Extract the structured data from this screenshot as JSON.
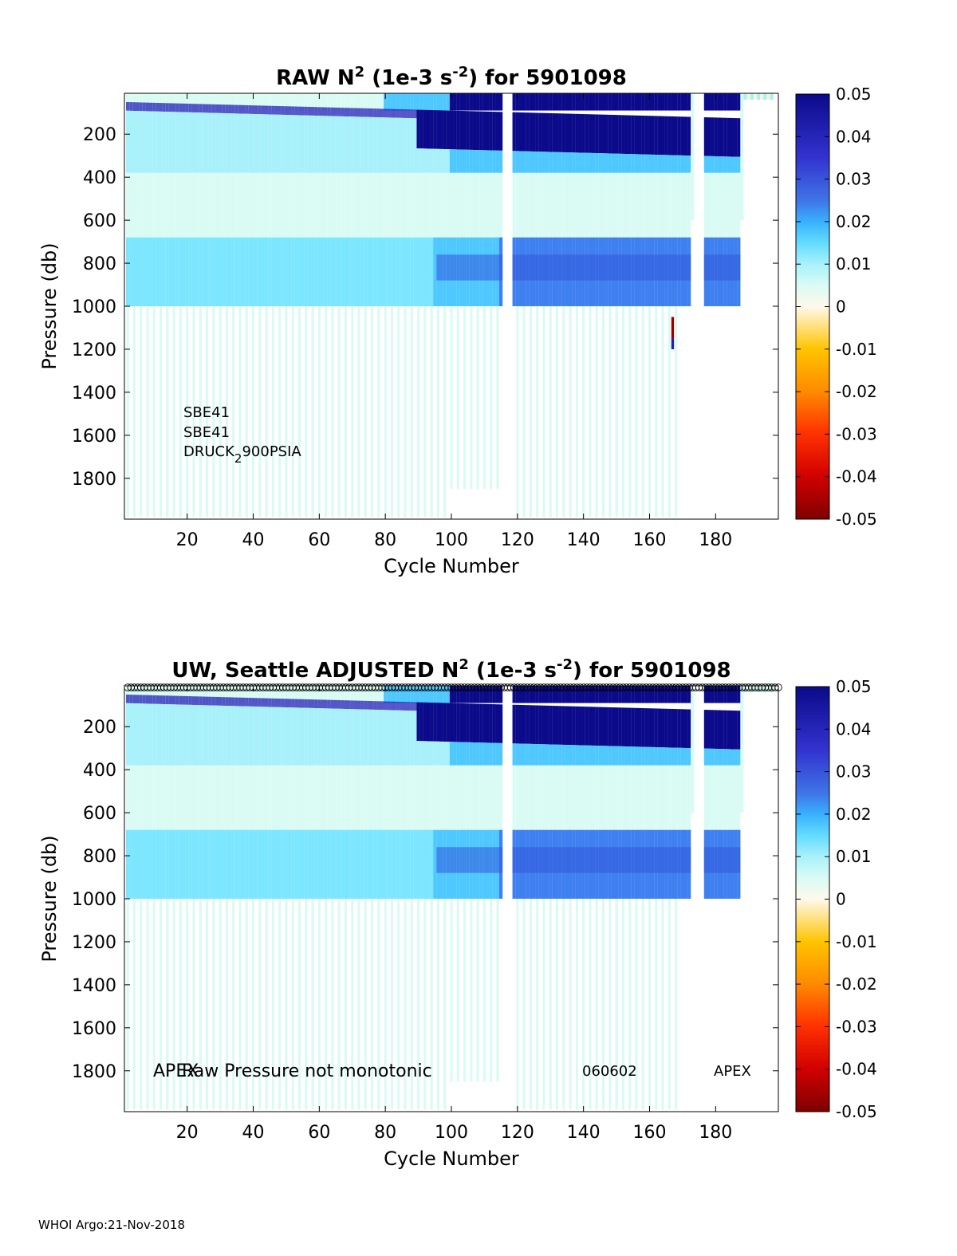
{
  "footer": "WHOI Argo:21-Nov-2018",
  "colors": {
    "cmap_neg": [
      "#7f0000",
      "#d00000",
      "#ff3000",
      "#ff8a00",
      "#ffc400",
      "#fff2d6"
    ],
    "cmap_pos": [
      "#fff9ec",
      "#d9fbf5",
      "#a9f1fa",
      "#63dcff",
      "#38b0ff",
      "#3f74e6",
      "#3333d0",
      "#0a0a8a"
    ]
  },
  "chart_data": [
    {
      "type": "heatmap",
      "title": {
        "pre": "RAW N",
        "sup1": "2",
        "mid": " (1e-3 s",
        "sup2": "-2",
        "post": ") for 5901098"
      },
      "xlabel": "Cycle Number",
      "ylabel": "Pressure (db)",
      "xlim": [
        1,
        199
      ],
      "ylim": [
        1990,
        10
      ],
      "xticks": [
        20,
        40,
        60,
        80,
        100,
        120,
        140,
        160,
        180
      ],
      "yticks": [
        200,
        400,
        600,
        800,
        1000,
        1200,
        1400,
        1600,
        1800
      ],
      "colorbar": {
        "min": -0.05,
        "max": 0.05,
        "ticks": [
          "0.05",
          "0.04",
          "0.03",
          "0.02",
          "0.01",
          "0",
          "-0.01",
          "-0.02",
          "-0.03",
          "-0.04",
          "-0.05"
        ]
      },
      "annotations": {
        "sensor1": "SBE41",
        "sensor2": "SBE41",
        "pressure_sensor": {
          "base": "DRUCK",
          "sub": "2",
          "rest": "900PSIA"
        }
      }
    },
    {
      "type": "heatmap",
      "title": {
        "pre": "UW, Seattle  ADJUSTED N",
        "sup1": "2",
        "mid": " (1e-3 s",
        "sup2": "-2",
        "post": ") for 5901098"
      },
      "xlabel": "Cycle Number",
      "ylabel": "Pressure (db)",
      "xlim": [
        1,
        199
      ],
      "ylim": [
        1990,
        10
      ],
      "xticks": [
        20,
        40,
        60,
        80,
        100,
        120,
        140,
        160,
        180
      ],
      "yticks": [
        200,
        400,
        600,
        800,
        1000,
        1200,
        1400,
        1600,
        1800
      ],
      "colorbar": {
        "min": -0.05,
        "max": 0.05,
        "ticks": [
          "0.05",
          "0.04",
          "0.03",
          "0.02",
          "0.01",
          "0",
          "-0.01",
          "-0.02",
          "-0.03",
          "-0.04",
          "-0.05"
        ]
      },
      "annotations": {
        "float_type_left": "APEX",
        "warning": "Raw Pressure not monotonic",
        "firmware": "060602",
        "float_type_right": "APEX"
      }
    }
  ]
}
